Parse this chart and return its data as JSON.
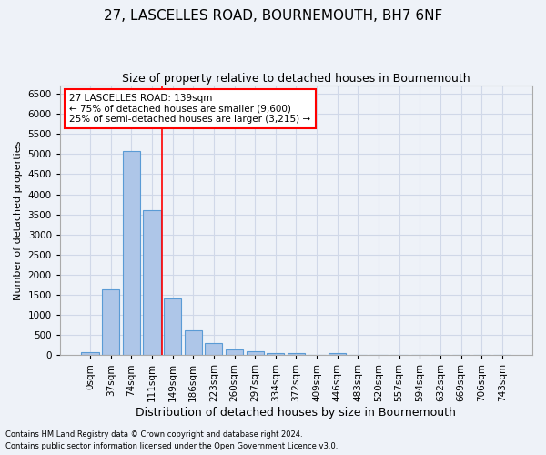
{
  "title1": "27, LASCELLES ROAD, BOURNEMOUTH, BH7 6NF",
  "title2": "Size of property relative to detached houses in Bournemouth",
  "xlabel": "Distribution of detached houses by size in Bournemouth",
  "ylabel": "Number of detached properties",
  "footer1": "Contains HM Land Registry data © Crown copyright and database right 2024.",
  "footer2": "Contains public sector information licensed under the Open Government Licence v3.0.",
  "bin_labels": [
    "0sqm",
    "37sqm",
    "74sqm",
    "111sqm",
    "149sqm",
    "186sqm",
    "223sqm",
    "260sqm",
    "297sqm",
    "334sqm",
    "372sqm",
    "409sqm",
    "446sqm",
    "483sqm",
    "520sqm",
    "557sqm",
    "594sqm",
    "632sqm",
    "669sqm",
    "706sqm",
    "743sqm"
  ],
  "bar_values": [
    75,
    1625,
    5075,
    3600,
    1400,
    625,
    300,
    150,
    90,
    50,
    60,
    0,
    50,
    0,
    0,
    0,
    0,
    0,
    0,
    0,
    0
  ],
  "bar_color": "#aec6e8",
  "bar_edge_color": "#5a9bd5",
  "grid_color": "#d0d8e8",
  "background_color": "#eef2f8",
  "vline_color": "red",
  "vline_x": 3.5,
  "annotation_line1": "27 LASCELLES ROAD: 139sqm",
  "annotation_line2": "← 75% of detached houses are smaller (9,600)",
  "annotation_line3": "25% of semi-detached houses are larger (3,215) →",
  "annotation_box_color": "white",
  "annotation_border_color": "red",
  "ylim": [
    0,
    6700
  ],
  "yticks": [
    0,
    500,
    1000,
    1500,
    2000,
    2500,
    3000,
    3500,
    4000,
    4500,
    5000,
    5500,
    6000,
    6500
  ],
  "title1_fontsize": 11,
  "title2_fontsize": 9,
  "xlabel_fontsize": 9,
  "ylabel_fontsize": 8,
  "tick_fontsize": 7.5,
  "annotation_fontsize": 7.5,
  "footer_fontsize": 6
}
